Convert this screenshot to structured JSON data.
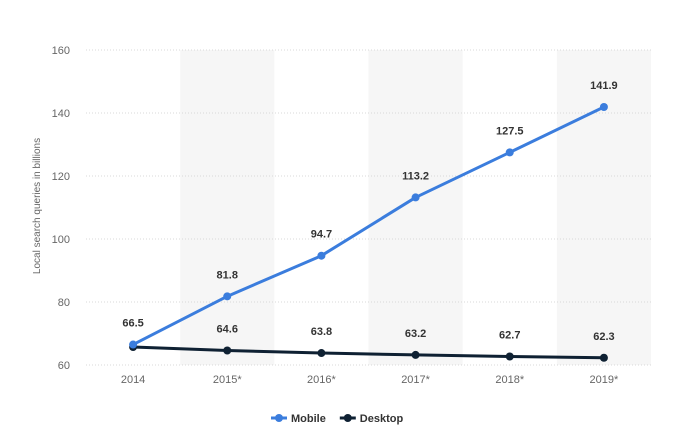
{
  "chart_data": {
    "type": "line",
    "title": "",
    "xlabel": "",
    "ylabel": "Local search queries in billions",
    "categories": [
      "2014",
      "2015*",
      "2016*",
      "2017*",
      "2018*",
      "2019*"
    ],
    "ylim": [
      60,
      160
    ],
    "yticks": [
      60,
      80,
      100,
      120,
      140,
      160
    ],
    "grid": true,
    "legend_position": "bottom-center",
    "series": [
      {
        "name": "Mobile",
        "color": "#3b7ddd",
        "values": [
          66.5,
          81.8,
          94.7,
          113.2,
          127.5,
          141.9
        ],
        "labels": [
          "66.5",
          "81.8",
          "94.7",
          "113.2",
          "127.5",
          "141.9"
        ],
        "label_position": "above"
      },
      {
        "name": "Desktop",
        "color": "#0f2133",
        "values": [
          65.7,
          64.6,
          63.8,
          63.2,
          62.7,
          62.3
        ],
        "labels": [
          "",
          "64.6",
          "63.8",
          "63.2",
          "62.7",
          "62.3"
        ],
        "label_position": "above"
      }
    ]
  }
}
